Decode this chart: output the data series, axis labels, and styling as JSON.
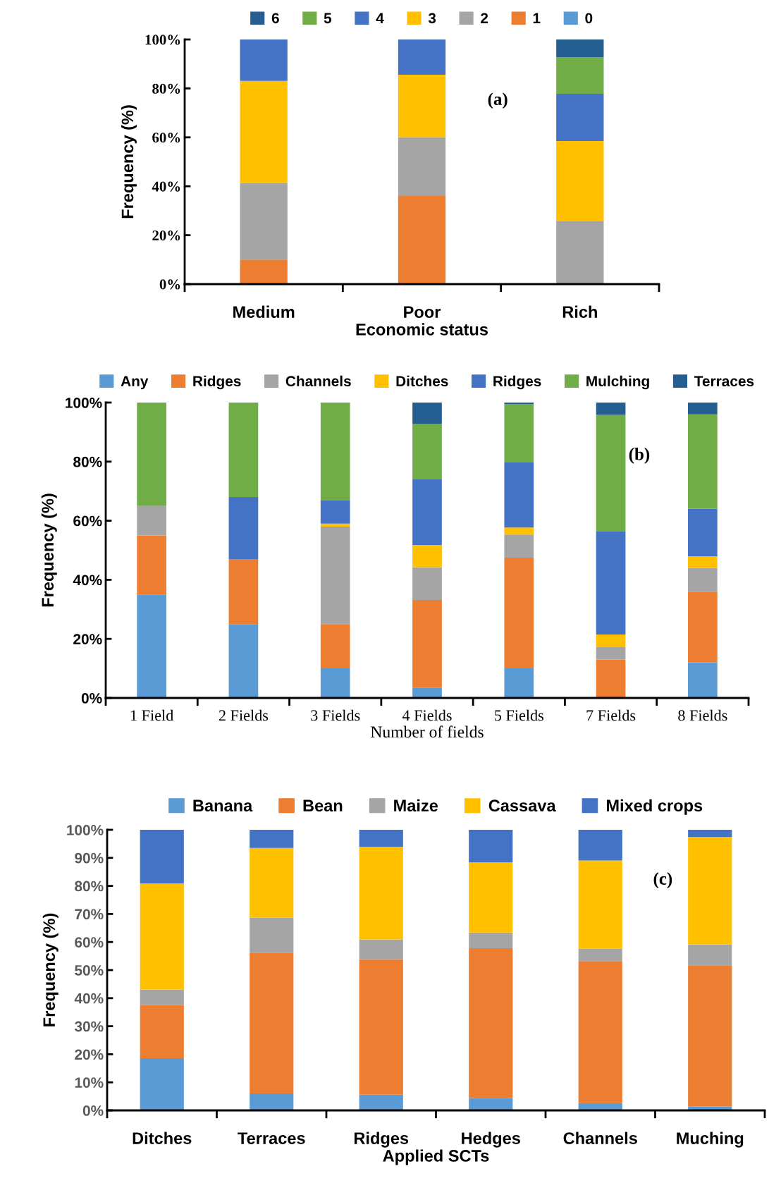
{
  "chart_data": [
    {
      "type": "bar",
      "stacked": true,
      "xlabel": "Economic status",
      "ylabel": "Frequency (%)",
      "annotations": [
        "(a)"
      ],
      "legend": "top",
      "grid": false,
      "categories": [
        "Medium",
        "Poor",
        "Rich"
      ],
      "ylim": [
        0,
        100
      ],
      "yticks": [
        {
          "value": 0,
          "label": "0%"
        },
        {
          "value": 20,
          "label": "20%"
        },
        {
          "value": 40,
          "label": "40%"
        },
        {
          "value": 60,
          "label": "60%"
        },
        {
          "value": 80,
          "label": "80%"
        },
        {
          "value": 100,
          "label": "100%"
        }
      ],
      "series": [
        {
          "name": "0",
          "color": "#5b9bd5",
          "values": [
            0,
            0,
            0
          ]
        },
        {
          "name": "1",
          "color": "#ed7d31",
          "values": [
            10,
            36,
            0.6
          ]
        },
        {
          "name": "2",
          "color": "#a5a5a5",
          "values": [
            31.3,
            24.1,
            25.3
          ]
        },
        {
          "name": "3",
          "color": "#ffc000",
          "values": [
            41.8,
            25.5,
            32.6
          ]
        },
        {
          "name": "4",
          "color": "#4472c4",
          "values": [
            16.9,
            14.4,
            19.3
          ]
        },
        {
          "name": "5",
          "color": "#70ad47",
          "values": [
            0,
            0,
            14.9
          ]
        },
        {
          "name": "6",
          "color": "#255e91",
          "values": [
            0,
            0,
            7.3
          ]
        }
      ]
    },
    {
      "type": "bar",
      "stacked": true,
      "xlabel": "Number of fields",
      "ylabel": "Frequency (%)",
      "annotations": [
        "(b)"
      ],
      "legend": "top",
      "grid": false,
      "categories": [
        "1 Field",
        "2 Fields",
        "3 Fields",
        "4 Fields",
        "5 Fields",
        "7 Fields",
        "8 Fields"
      ],
      "ylim": [
        0,
        100
      ],
      "yticks": [
        {
          "value": 0,
          "label": "0%"
        },
        {
          "value": 20,
          "label": "20%"
        },
        {
          "value": 40,
          "label": "40%"
        },
        {
          "value": 60,
          "label": "60%"
        },
        {
          "value": 80,
          "label": "80%"
        },
        {
          "value": 100,
          "label": "100%"
        }
      ],
      "series": [
        {
          "name": "Any",
          "color": "#5b9bd5",
          "values": [
            35,
            25,
            10,
            3.5,
            10,
            0,
            12
          ]
        },
        {
          "name": "Ridges",
          "color": "#ed7d31",
          "values": [
            20,
            22,
            15,
            29.7,
            37.5,
            13,
            24
          ]
        },
        {
          "name": "Channels",
          "color": "#a5a5a5",
          "values": [
            10,
            0,
            33,
            11.1,
            7.8,
            4.2,
            8
          ]
        },
        {
          "name": "Ditches",
          "color": "#ffc000",
          "values": [
            0,
            0,
            1,
            7.5,
            2.4,
            4.3,
            4
          ]
        },
        {
          "name": "Ridges",
          "color": "#4472c4",
          "values": [
            0,
            21,
            8,
            22.2,
            22,
            35,
            16
          ]
        },
        {
          "name": "Mulching",
          "color": "#70ad47",
          "values": [
            35,
            32,
            33,
            18.7,
            19.8,
            39.3,
            32
          ]
        },
        {
          "name": "Terraces",
          "color": "#255e91",
          "values": [
            0,
            0,
            0,
            7.3,
            0.5,
            4.2,
            4
          ]
        }
      ]
    },
    {
      "type": "bar",
      "stacked": true,
      "xlabel": "Applied SCTs",
      "ylabel": "Frequency (%)",
      "annotations": [
        "(c)"
      ],
      "legend": "top",
      "grid": false,
      "categories": [
        "Ditches",
        "Terraces",
        "Ridges",
        "Hedges",
        "Channels",
        "Muching"
      ],
      "ylim": [
        0,
        100
      ],
      "yticks": [
        {
          "value": 0,
          "label": "0%"
        },
        {
          "value": 10,
          "label": "10%"
        },
        {
          "value": 20,
          "label": "20%"
        },
        {
          "value": 30,
          "label": "30%"
        },
        {
          "value": 40,
          "label": "40%"
        },
        {
          "value": 50,
          "label": "50%"
        },
        {
          "value": 60,
          "label": "60%"
        },
        {
          "value": 70,
          "label": "70%"
        },
        {
          "value": 80,
          "label": "80%"
        },
        {
          "value": 90,
          "label": "90%"
        },
        {
          "value": 100,
          "label": "100%"
        }
      ],
      "series": [
        {
          "name": "Banana",
          "color": "#5b9bd5",
          "values": [
            18.6,
            6.0,
            5.6,
            4.4,
            2.6,
            1.4
          ]
        },
        {
          "name": "Bean",
          "color": "#ed7d31",
          "values": [
            18.9,
            50.2,
            48.3,
            53.4,
            50.6,
            50.3
          ]
        },
        {
          "name": "Maize",
          "color": "#a5a5a5",
          "values": [
            5.6,
            12.5,
            7,
            5.6,
            4.4,
            7.5
          ]
        },
        {
          "name": "Cassava",
          "color": "#ffc000",
          "values": [
            37.8,
            24.8,
            33,
            25,
            31.5,
            38.2
          ]
        },
        {
          "name": "Mixed crops",
          "color": "#4472c4",
          "values": [
            19.1,
            6.5,
            6.1,
            11.6,
            10.9,
            2.6
          ]
        }
      ]
    }
  ]
}
